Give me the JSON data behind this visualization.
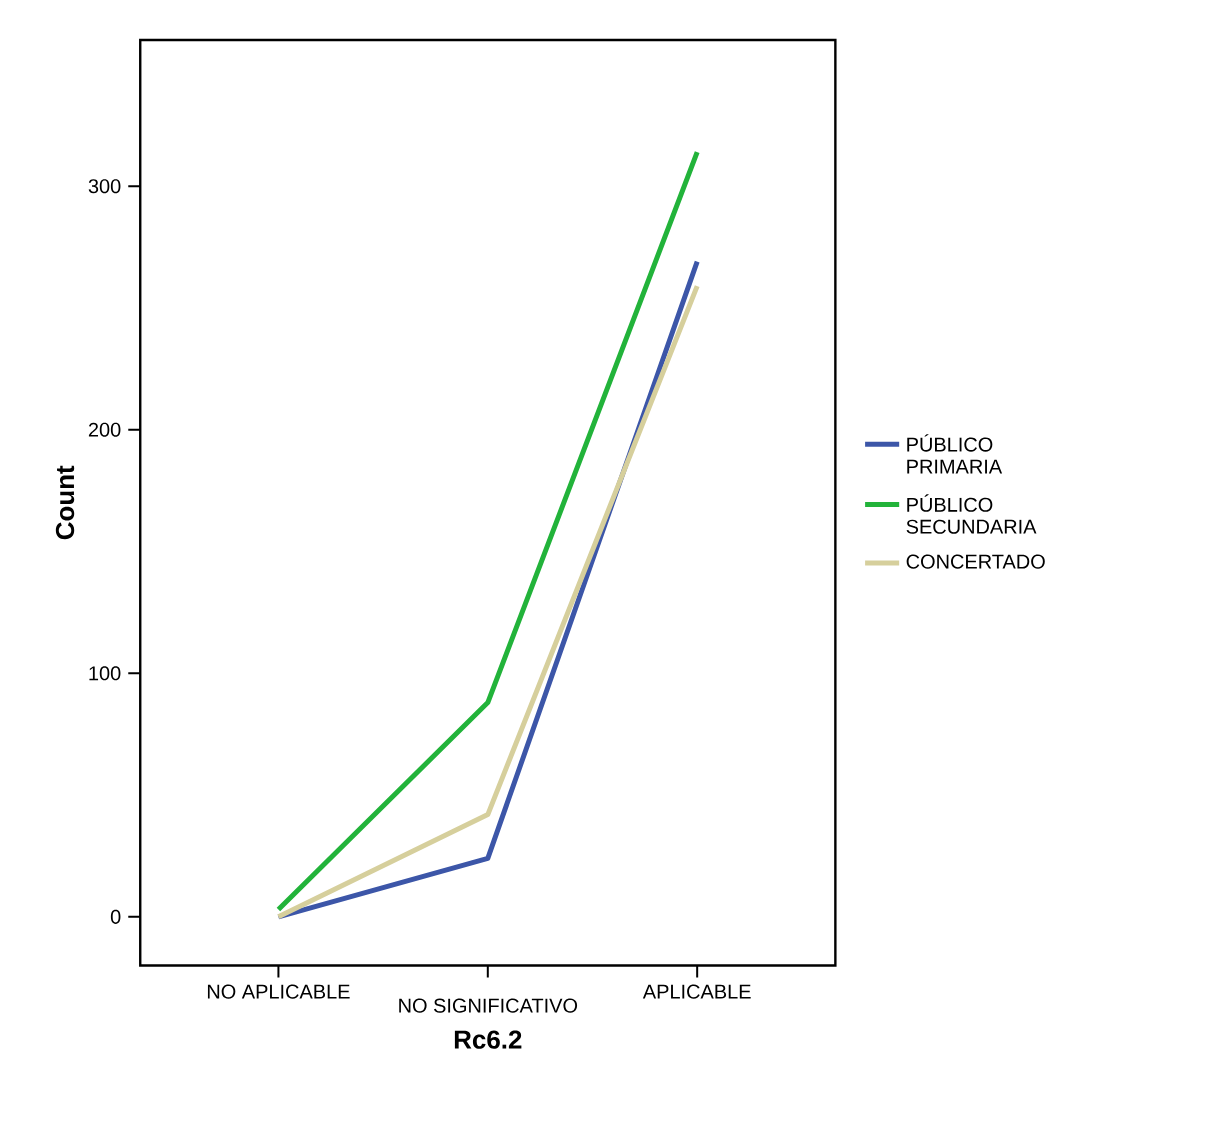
{
  "chart_data": {
    "type": "line",
    "xlabel": "Rc6.2",
    "ylabel": "Count",
    "categories": [
      "NO APLICABLE",
      "NO SIGNIFICATIVO",
      "APLICABLE"
    ],
    "series": [
      {
        "name": "PÚBLICO PRIMARIA",
        "color": "#3c56a8",
        "values": [
          0,
          24,
          269
        ]
      },
      {
        "name": "PÚBLICO SECUNDARIA",
        "color": "#22b33a",
        "values": [
          3,
          88,
          314
        ]
      },
      {
        "name": "CONCERTADO",
        "color": "#d6cf9c",
        "values": [
          0,
          42,
          259
        ]
      }
    ],
    "ylim": [
      -20,
      360
    ],
    "yticks": [
      0,
      100,
      200,
      300
    ],
    "grid": false,
    "legend": "right",
    "marker": "none",
    "line_style": "solid"
  }
}
